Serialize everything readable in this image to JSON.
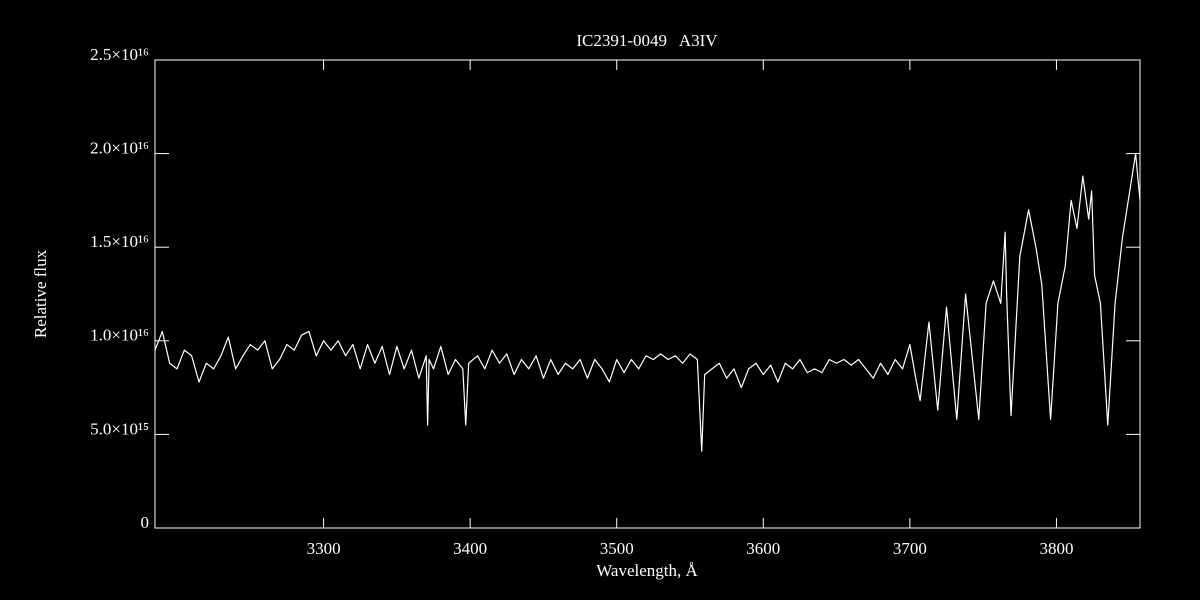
{
  "chart_data": {
    "type": "line",
    "title": "IC2391-0049   A3IV",
    "x_label": "Wavelength, Å",
    "y_label": "Relative flux",
    "color": "#ffffff",
    "xlim": [
      3185,
      3857
    ],
    "xticks": [
      3300,
      3400,
      3500,
      3600,
      3700,
      3800
    ],
    "ylim": [
      0,
      2.5e+16
    ],
    "yticks": [
      0,
      {
        "value": 5000000000000000.0,
        "label": "5.0×10¹⁵"
      },
      {
        "value": 1e+16,
        "label": "1.0×10¹⁶"
      },
      {
        "value": 1.5e+16,
        "label": "1.5×10¹⁶"
      },
      {
        "value": 2e+16,
        "label": "2.0×10¹⁶"
      },
      {
        "value": 2.5e+16,
        "label": "2.5×10¹⁶"
      }
    ],
    "x": [
      3185,
      3190,
      3195,
      3200,
      3205,
      3210,
      3215,
      3220,
      3225,
      3230,
      3235,
      3240,
      3245,
      3250,
      3255,
      3260,
      3265,
      3270,
      3275,
      3280,
      3285,
      3290,
      3295,
      3300,
      3305,
      3310,
      3315,
      3320,
      3325,
      3330,
      3335,
      3340,
      3345,
      3350,
      3355,
      3360,
      3365,
      3370,
      3371,
      3372,
      3375,
      3380,
      3385,
      3390,
      3395,
      3397,
      3399,
      3405,
      3410,
      3415,
      3420,
      3425,
      3430,
      3435,
      3440,
      3445,
      3450,
      3455,
      3460,
      3465,
      3470,
      3475,
      3480,
      3485,
      3490,
      3495,
      3500,
      3505,
      3510,
      3515,
      3520,
      3525,
      3530,
      3535,
      3540,
      3545,
      3550,
      3555,
      3558,
      3560,
      3565,
      3570,
      3575,
      3580,
      3585,
      3590,
      3595,
      3600,
      3605,
      3610,
      3615,
      3620,
      3625,
      3630,
      3635,
      3640,
      3645,
      3650,
      3655,
      3660,
      3665,
      3670,
      3675,
      3680,
      3685,
      3690,
      3695,
      3700,
      3704,
      3707,
      3713,
      3719,
      3725,
      3732,
      3738,
      3747,
      3752,
      3757,
      3762,
      3765,
      3766,
      3769,
      3775,
      3781,
      3786,
      3790,
      3796,
      3801,
      3806,
      3810,
      3814,
      3818,
      3822,
      3824,
      3826,
      3830,
      3835,
      3840,
      3845,
      3850,
      3854,
      3857
    ],
    "values": [
      9500000000000000.0,
      1.05e+16,
      8800000000000000.0,
      8500000000000000.0,
      9500000000000000.0,
      9200000000000000.0,
      7800000000000000.0,
      8800000000000000.0,
      8500000000000000.0,
      9200000000000000.0,
      1.02e+16,
      8500000000000000.0,
      9200000000000000.0,
      9800000000000000.0,
      9500000000000000.0,
      1e+16,
      8500000000000000.0,
      9000000000000000.0,
      9800000000000000.0,
      9500000000000000.0,
      1.03e+16,
      1.05e+16,
      9200000000000000.0,
      1e+16,
      9500000000000000.0,
      1e+16,
      9200000000000000.0,
      9800000000000000.0,
      8500000000000000.0,
      9800000000000000.0,
      8800000000000000.0,
      9700000000000000.0,
      8200000000000000.0,
      9700000000000000.0,
      8500000000000000.0,
      9500000000000000.0,
      8000000000000000.0,
      9200000000000000.0,
      5500000000000000.0,
      9000000000000000.0,
      8500000000000000.0,
      9700000000000000.0,
      8200000000000000.0,
      9000000000000000.0,
      8500000000000000.0,
      5500000000000000.0,
      8800000000000000.0,
      9200000000000000.0,
      8500000000000000.0,
      9500000000000000.0,
      8800000000000000.0,
      9300000000000000.0,
      8200000000000000.0,
      9000000000000000.0,
      8500000000000000.0,
      9200000000000000.0,
      8000000000000000.0,
      9000000000000000.0,
      8200000000000000.0,
      8800000000000000.0,
      8500000000000000.0,
      9000000000000000.0,
      8000000000000000.0,
      9000000000000000.0,
      8500000000000000.0,
      7800000000000000.0,
      9000000000000000.0,
      8300000000000000.0,
      9000000000000000.0,
      8500000000000000.0,
      9200000000000000.0,
      9000000000000000.0,
      9300000000000000.0,
      9000000000000000.0,
      9200000000000000.0,
      8800000000000000.0,
      9300000000000000.0,
      9000000000000000.0,
      4100000000000000.0,
      8200000000000000.0,
      8500000000000000.0,
      8800000000000000.0,
      8000000000000000.0,
      8500000000000000.0,
      7500000000000000.0,
      8500000000000000.0,
      8800000000000000.0,
      8200000000000000.0,
      8700000000000000.0,
      7800000000000000.0,
      8800000000000000.0,
      8500000000000000.0,
      9000000000000000.0,
      8300000000000000.0,
      8500000000000000.0,
      8300000000000000.0,
      9000000000000000.0,
      8800000000000000.0,
      9000000000000000.0,
      8700000000000000.0,
      9000000000000000.0,
      8500000000000000.0,
      8000000000000000.0,
      8800000000000000.0,
      8200000000000000.0,
      9000000000000000.0,
      8500000000000000.0,
      9800000000000000.0,
      8000000000000000.0,
      6800000000000000.0,
      1.1e+16,
      6300000000000000.0,
      1.18e+16,
      5800000000000000.0,
      1.25e+16,
      5800000000000000.0,
      1.2e+16,
      1.32e+16,
      1.2e+16,
      1.58e+16,
      1.25e+16,
      6000000000000000.0,
      1.45e+16,
      1.7e+16,
      1.5e+16,
      1.3e+16,
      5800000000000000.0,
      1.2e+16,
      1.4e+16,
      1.75e+16,
      1.6e+16,
      1.88e+16,
      1.65e+16,
      1.8e+16,
      1.35e+16,
      1.2e+16,
      5500000000000000.0,
      1.2e+16,
      1.55e+16,
      1.8e+16,
      2e+16,
      1.75e+16
    ]
  }
}
